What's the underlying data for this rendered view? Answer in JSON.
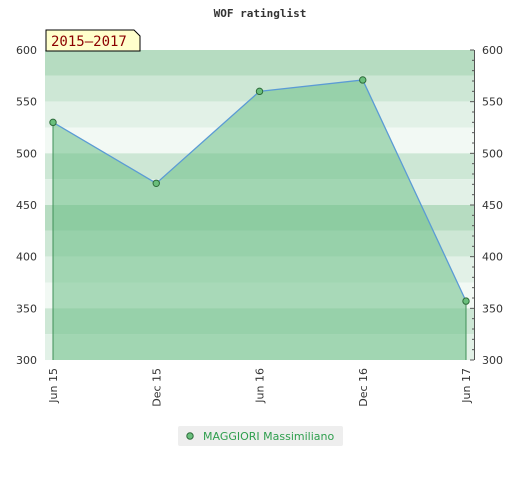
{
  "chart_data": {
    "type": "area",
    "title": "WOF ratinglist",
    "period_badge": "2015–2017",
    "categories": [
      "Jun 15",
      "Dec 15",
      "Jun 16",
      "Dec 16",
      "Jun 17"
    ],
    "series": [
      {
        "name": "MAGGIORI Massimiliano",
        "values": [
          530,
          471,
          560,
          571,
          357
        ]
      }
    ],
    "ylim": [
      300,
      600
    ],
    "y_ticks": [
      "300",
      "350",
      "400",
      "450",
      "500",
      "550",
      "600"
    ],
    "grid": true,
    "legend_position": "bottom-center",
    "colors": {
      "line": "#5b9bd5",
      "fill": "#6bbf86",
      "marker": "#6abf7c",
      "legend_text": "#2e9e4d",
      "badge_bg": "#ffffcc",
      "badge_text": "#8b0000"
    }
  }
}
